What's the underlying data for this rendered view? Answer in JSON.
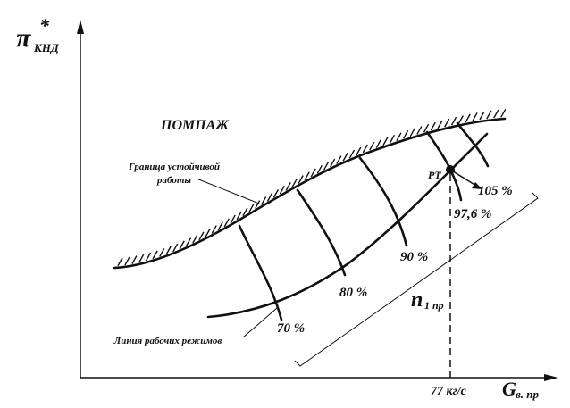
{
  "y_axis": {
    "symbol": "π",
    "superscript": "*",
    "subscript": "КНД"
  },
  "x_axis": {
    "symbol": "G",
    "subscript": "в. пр"
  },
  "surge_label": "ПОМПАЖ",
  "stability_boundary": [
    "Граница устойчивой",
    "работы"
  ],
  "operating_line": "Линия рабочих режимов",
  "design_point": "РТ",
  "speed_lines": [
    "70 %",
    "80 %",
    "90 %",
    "97,6 %",
    "105 %"
  ],
  "speed_param": {
    "symbol": "n",
    "subscript": "1 пр"
  },
  "design_flow": "77 кг/с"
}
